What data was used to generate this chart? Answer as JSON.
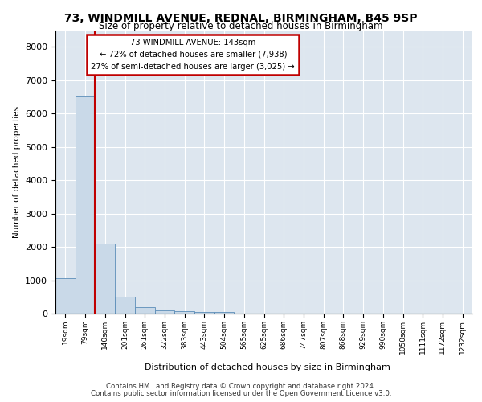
{
  "title1": "73, WINDMILL AVENUE, REDNAL, BIRMINGHAM, B45 9SP",
  "title2": "Size of property relative to detached houses in Birmingham",
  "xlabel": "Distribution of detached houses by size in Birmingham",
  "ylabel": "Number of detached properties",
  "footer1": "Contains HM Land Registry data © Crown copyright and database right 2024.",
  "footer2": "Contains public sector information licensed under the Open Government Licence v3.0.",
  "annotation_title": "73 WINDMILL AVENUE: 143sqm",
  "annotation_line2": "← 72% of detached houses are smaller (7,938)",
  "annotation_line3": "27% of semi-detached houses are larger (3,025) →",
  "bin_labels": [
    "19sqm",
    "79sqm",
    "140sqm",
    "201sqm",
    "261sqm",
    "322sqm",
    "383sqm",
    "443sqm",
    "504sqm",
    "565sqm",
    "625sqm",
    "686sqm",
    "747sqm",
    "807sqm",
    "868sqm",
    "929sqm",
    "990sqm",
    "1050sqm",
    "1111sqm",
    "1172sqm",
    "1232sqm"
  ],
  "bar_values": [
    1050,
    6500,
    2100,
    500,
    200,
    100,
    75,
    55,
    45,
    0,
    0,
    0,
    0,
    0,
    0,
    0,
    0,
    0,
    0,
    0,
    0
  ],
  "ylim": [
    0,
    8500
  ],
  "yticks": [
    0,
    1000,
    2000,
    3000,
    4000,
    5000,
    6000,
    7000,
    8000
  ],
  "property_line_x": 1.5,
  "bar_color": "#c9d9e8",
  "bar_edge_color": "#5b8db8",
  "highlight_color": "#c00000",
  "bg_color": "#dde6ef",
  "grid_color": "#ffffff"
}
